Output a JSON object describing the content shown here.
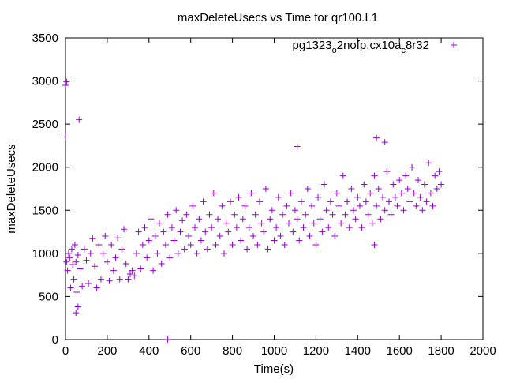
{
  "chart_data": {
    "type": "scatter",
    "title": "maxDeleteUsecs vs Time for qr100.L1",
    "xlabel": "Time(s)",
    "ylabel": "maxDeleteUsecs",
    "xlim": [
      0,
      2000
    ],
    "ylim": [
      0,
      3500
    ],
    "xticks": [
      "0",
      "200",
      "400",
      "600",
      "800",
      "1000",
      "1200",
      "1400",
      "1600",
      "1800",
      "2000"
    ],
    "yticks": [
      "0",
      "500",
      "1000",
      "1500",
      "2000",
      "2500",
      "3000",
      "3500"
    ],
    "grid": false,
    "legend_position": "top-right",
    "series": [
      {
        "name": "pg1323_o2nofp.cx10a_c8r32",
        "legend_main": "pg1323",
        "legend_sub1": "o",
        "legend_mid": "2nofp.cx10a",
        "legend_sub2": "c",
        "legend_end": "8r32",
        "color": "#9400d3",
        "points": [
          [
            0,
            2950
          ],
          [
            5,
            2990
          ],
          [
            0,
            2350
          ],
          [
            65,
            2550
          ],
          [
            50,
            310
          ],
          [
            60,
            380
          ],
          [
            490,
            0
          ],
          [
            1110,
            2240
          ],
          [
            1490,
            2340
          ],
          [
            1530,
            2290
          ],
          [
            1480,
            1100
          ],
          [
            5,
            900
          ],
          [
            10,
            800
          ],
          [
            15,
            1000
          ],
          [
            20,
            950
          ],
          [
            25,
            600
          ],
          [
            30,
            1050
          ],
          [
            35,
            870
          ],
          [
            40,
            700
          ],
          [
            45,
            1100
          ],
          [
            50,
            900
          ],
          [
            55,
            550
          ],
          [
            60,
            980
          ],
          [
            70,
            820
          ],
          [
            80,
            620
          ],
          [
            90,
            1050
          ],
          [
            100,
            920
          ],
          [
            110,
            650
          ],
          [
            120,
            1000
          ],
          [
            130,
            1170
          ],
          [
            140,
            850
          ],
          [
            150,
            600
          ],
          [
            160,
            1100
          ],
          [
            170,
            700
          ],
          [
            180,
            1000
          ],
          [
            190,
            1200
          ],
          [
            200,
            900
          ],
          [
            210,
            680
          ],
          [
            220,
            1100
          ],
          [
            230,
            800
          ],
          [
            240,
            950
          ],
          [
            250,
            1180
          ],
          [
            260,
            700
          ],
          [
            270,
            1050
          ],
          [
            280,
            1280
          ],
          [
            290,
            880
          ],
          [
            300,
            700
          ],
          [
            310,
            760
          ],
          [
            320,
            800
          ],
          [
            330,
            740
          ],
          [
            340,
            1000
          ],
          [
            350,
            1250
          ],
          [
            360,
            820
          ],
          [
            370,
            1100
          ],
          [
            380,
            1300
          ],
          [
            390,
            950
          ],
          [
            400,
            1150
          ],
          [
            410,
            1400
          ],
          [
            420,
            800
          ],
          [
            430,
            1200
          ],
          [
            440,
            1000
          ],
          [
            450,
            1350
          ],
          [
            460,
            880
          ],
          [
            470,
            1250
          ],
          [
            480,
            1100
          ],
          [
            490,
            1450
          ],
          [
            500,
            950
          ],
          [
            510,
            1300
          ],
          [
            520,
            1150
          ],
          [
            530,
            1500
          ],
          [
            540,
            1000
          ],
          [
            550,
            1250
          ],
          [
            560,
            1380
          ],
          [
            570,
            1050
          ],
          [
            580,
            1450
          ],
          [
            590,
            1200
          ],
          [
            600,
            1100
          ],
          [
            610,
            1550
          ],
          [
            620,
            1300
          ],
          [
            630,
            1000
          ],
          [
            640,
            1400
          ],
          [
            650,
            1150
          ],
          [
            660,
            1600
          ],
          [
            670,
            1250
          ],
          [
            680,
            1050
          ],
          [
            690,
            1450
          ],
          [
            700,
            1300
          ],
          [
            710,
            1700
          ],
          [
            720,
            1100
          ],
          [
            730,
            1400
          ],
          [
            740,
            1200
          ],
          [
            750,
            1550
          ],
          [
            760,
            1000
          ],
          [
            770,
            1350
          ],
          [
            780,
            1250
          ],
          [
            790,
            1600
          ],
          [
            800,
            1100
          ],
          [
            810,
            1450
          ],
          [
            820,
            1300
          ],
          [
            830,
            1650
          ],
          [
            840,
            1150
          ],
          [
            850,
            1400
          ],
          [
            860,
            1550
          ],
          [
            870,
            1050
          ],
          [
            880,
            1300
          ],
          [
            890,
            1700
          ],
          [
            900,
            1200
          ],
          [
            910,
            1450
          ],
          [
            920,
            1100
          ],
          [
            930,
            1600
          ],
          [
            940,
            1350
          ],
          [
            950,
            1250
          ],
          [
            960,
            1750
          ],
          [
            970,
            1050
          ],
          [
            980,
            1400
          ],
          [
            990,
            1500
          ],
          [
            1000,
            1150
          ],
          [
            1010,
            1300
          ],
          [
            1020,
            1650
          ],
          [
            1030,
            1200
          ],
          [
            1040,
            1450
          ],
          [
            1050,
            1100
          ],
          [
            1060,
            1550
          ],
          [
            1070,
            1350
          ],
          [
            1080,
            1700
          ],
          [
            1090,
            1250
          ],
          [
            1100,
            1500
          ],
          [
            1110,
            1400
          ],
          [
            1120,
            1150
          ],
          [
            1130,
            1600
          ],
          [
            1140,
            1300
          ],
          [
            1150,
            1450
          ],
          [
            1160,
            1750
          ],
          [
            1170,
            1200
          ],
          [
            1180,
            1550
          ],
          [
            1190,
            1350
          ],
          [
            1200,
            1100
          ],
          [
            1210,
            1650
          ],
          [
            1220,
            1400
          ],
          [
            1230,
            1250
          ],
          [
            1240,
            1800
          ],
          [
            1250,
            1500
          ],
          [
            1260,
            1300
          ],
          [
            1270,
            1600
          ],
          [
            1280,
            1450
          ],
          [
            1290,
            1200
          ],
          [
            1300,
            1700
          ],
          [
            1310,
            1550
          ],
          [
            1320,
            1350
          ],
          [
            1330,
            1900
          ],
          [
            1340,
            1450
          ],
          [
            1350,
            1600
          ],
          [
            1360,
            1300
          ],
          [
            1370,
            1750
          ],
          [
            1380,
            1500
          ],
          [
            1390,
            1400
          ],
          [
            1400,
            1650
          ],
          [
            1410,
            1550
          ],
          [
            1420,
            1300
          ],
          [
            1430,
            1800
          ],
          [
            1440,
            1600
          ],
          [
            1450,
            1450
          ],
          [
            1460,
            1700
          ],
          [
            1470,
            1350
          ],
          [
            1480,
            1900
          ],
          [
            1490,
            1550
          ],
          [
            1500,
            1750
          ],
          [
            1510,
            1400
          ],
          [
            1520,
            1650
          ],
          [
            1530,
            1500
          ],
          [
            1540,
            1950
          ],
          [
            1550,
            1600
          ],
          [
            1560,
            1450
          ],
          [
            1570,
            1800
          ],
          [
            1580,
            1650
          ],
          [
            1590,
            1550
          ],
          [
            1600,
            1850
          ],
          [
            1610,
            1700
          ],
          [
            1620,
            1500
          ],
          [
            1630,
            1900
          ],
          [
            1640,
            1750
          ],
          [
            1650,
            1600
          ],
          [
            1660,
            2000
          ],
          [
            1670,
            1700
          ],
          [
            1680,
            1550
          ],
          [
            1690,
            1850
          ],
          [
            1700,
            1650
          ],
          [
            1710,
            1500
          ],
          [
            1720,
            1800
          ],
          [
            1730,
            1600
          ],
          [
            1740,
            2050
          ],
          [
            1750,
            1700
          ],
          [
            1760,
            1550
          ],
          [
            1770,
            1900
          ],
          [
            1780,
            1750
          ],
          [
            1790,
            1950
          ],
          [
            1800,
            1800
          ]
        ]
      }
    ]
  }
}
